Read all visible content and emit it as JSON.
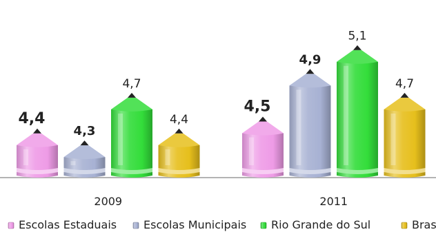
{
  "chart_data": {
    "type": "bar",
    "categories": [
      "2009",
      "2011"
    ],
    "series": [
      {
        "name": "Escolas Estaduais",
        "color": "#ee9be6",
        "values": [
          4.4,
          4.5
        ],
        "labels": [
          "4,4",
          "4,5"
        ],
        "bold": true
      },
      {
        "name": "Escolas Municipais",
        "color": "#a7b1d3",
        "values": [
          4.3,
          4.9
        ],
        "labels": [
          "4,3",
          "4,9"
        ],
        "bold": true
      },
      {
        "name": "Rio Grande do Sul",
        "color": "#33dd3a",
        "values": [
          4.7,
          5.1
        ],
        "labels": [
          "4,7",
          "5,1"
        ],
        "bold": false
      },
      {
        "name": "Brasil",
        "color": "#e6bf1c",
        "values": [
          4.4,
          4.7
        ],
        "labels": [
          "4,4",
          "4,7"
        ],
        "bold": false
      }
    ],
    "title": "",
    "xlabel": "",
    "ylabel": "",
    "grid": false,
    "legend": "bottom"
  }
}
